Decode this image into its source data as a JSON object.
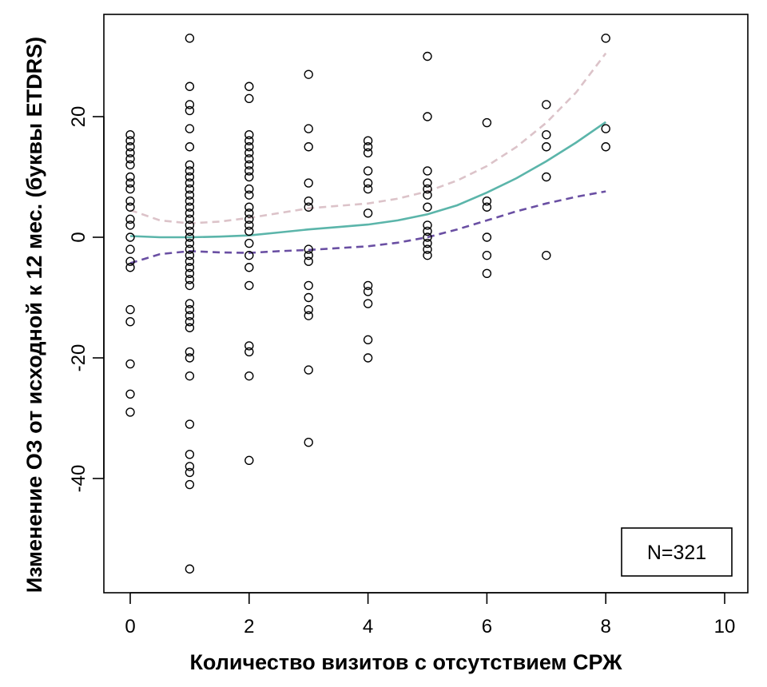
{
  "chart_data": {
    "type": "scatter",
    "title": "",
    "xlabel": "Количество визитов с отсутствием СРЖ",
    "ylabel": "Изменение ОЗ от исходной к 12 мес. (буквы ETDRS)",
    "xlim": [
      -0.4,
      10.4
    ],
    "ylim": [
      -59,
      37
    ],
    "x_ticks": [
      0,
      2,
      4,
      6,
      8,
      10
    ],
    "x_tick_labels": [
      "0",
      "2",
      "4",
      "6",
      "8",
      "10"
    ],
    "y_ticks": [
      -40,
      -20,
      0,
      20
    ],
    "y_tick_labels": [
      "-40",
      "-20",
      "0",
      "20"
    ],
    "annotation": "N=321",
    "points": [
      {
        "x": 0,
        "ys": [
          17,
          16,
          15,
          14,
          13,
          12,
          10,
          9,
          8,
          6,
          5,
          3,
          2,
          0,
          -2,
          -4,
          -5,
          -12,
          -14,
          -21,
          -26,
          -29
        ]
      },
      {
        "x": 1,
        "ys": [
          33,
          25,
          22,
          21,
          18,
          15,
          12,
          11,
          10,
          9,
          8,
          7,
          6,
          5,
          4,
          3,
          2,
          1,
          0,
          -1,
          -2,
          -3,
          -4,
          -5,
          -6,
          -7,
          -8,
          -11,
          -12,
          -13,
          -14,
          -15,
          -19,
          -20,
          -23,
          -31,
          -36,
          -38,
          -39,
          -41,
          -55
        ]
      },
      {
        "x": 2,
        "ys": [
          25,
          23,
          17,
          16,
          15,
          14,
          13,
          12,
          11,
          10,
          8,
          7,
          5,
          4,
          3,
          2,
          1,
          -1,
          -3,
          -5,
          -8,
          -18,
          -19,
          -23,
          -37
        ]
      },
      {
        "x": 3,
        "ys": [
          27,
          18,
          15,
          9,
          6,
          5,
          -2,
          -3,
          -4,
          -8,
          -10,
          -12,
          -13,
          -22,
          -34
        ]
      },
      {
        "x": 4,
        "ys": [
          16,
          15,
          14,
          11,
          9,
          8,
          4,
          -8,
          -9,
          -11,
          -17,
          -20
        ]
      },
      {
        "x": 5,
        "ys": [
          30,
          20,
          11,
          9,
          8,
          7,
          5,
          2,
          1,
          0,
          -1,
          -2,
          -3
        ]
      },
      {
        "x": 6,
        "ys": [
          19,
          6,
          5,
          0,
          -3,
          -6
        ]
      },
      {
        "x": 7,
        "ys": [
          22,
          17,
          15,
          10,
          -3
        ]
      },
      {
        "x": 8,
        "ys": [
          33,
          18,
          15
        ]
      }
    ],
    "series": [
      {
        "name": "fit",
        "style": "solid",
        "color": "#5bb5aa",
        "x": [
          0,
          0.5,
          1,
          1.5,
          2,
          2.5,
          3,
          3.5,
          4,
          4.5,
          5,
          5.5,
          6,
          6.5,
          7,
          7.5,
          8
        ],
        "y": [
          0.2,
          0.0,
          0.0,
          0.1,
          0.3,
          0.8,
          1.3,
          1.7,
          2.1,
          2.8,
          3.8,
          5.3,
          7.4,
          9.8,
          12.6,
          15.7,
          19.1
        ]
      },
      {
        "name": "upper",
        "style": "dashed",
        "color": "#dcc3c9",
        "x": [
          0,
          0.5,
          1,
          1.5,
          2,
          2.5,
          3,
          3.5,
          4,
          4.5,
          5,
          5.5,
          6,
          6.5,
          7,
          7.5,
          8
        ],
        "y": [
          4.5,
          2.8,
          2.3,
          2.6,
          3.2,
          4.0,
          4.8,
          5.2,
          5.6,
          6.4,
          7.6,
          9.4,
          11.8,
          15.0,
          19.0,
          24.0,
          30.5
        ]
      },
      {
        "name": "lower",
        "style": "dashed",
        "color": "#6a4fa3",
        "x": [
          0,
          0.5,
          1,
          1.5,
          2,
          2.5,
          3,
          3.5,
          4,
          4.5,
          5,
          5.5,
          6,
          6.5,
          7,
          7.5,
          8
        ],
        "y": [
          -4.3,
          -2.8,
          -2.3,
          -2.5,
          -2.6,
          -2.3,
          -2.1,
          -1.8,
          -1.5,
          -0.9,
          0.0,
          1.3,
          2.8,
          4.3,
          5.6,
          6.7,
          7.6
        ]
      }
    ]
  }
}
